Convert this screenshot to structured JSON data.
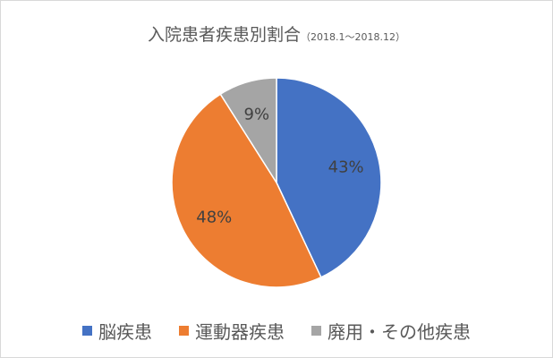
{
  "chart_data": {
    "type": "pie",
    "title": "入院患者疾患別割合",
    "subtitle": "（2018.1～2018.12）",
    "categories": [
      "脳疾患",
      "運動器疾患",
      "廃用・その他疾患"
    ],
    "values": [
      43,
      48,
      9
    ],
    "labels": [
      "43%",
      "48%",
      "9%"
    ],
    "colors": [
      "#4472C4",
      "#ED7D31",
      "#A5A5A5"
    ],
    "legend": "bottom"
  }
}
